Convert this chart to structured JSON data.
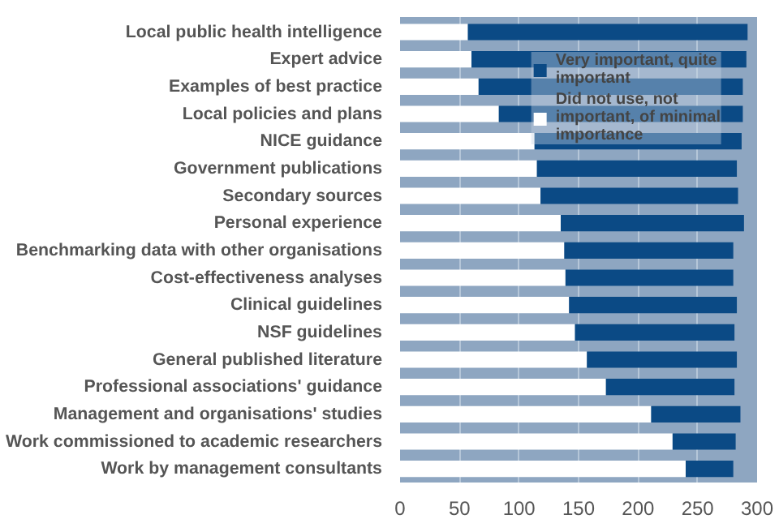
{
  "chart_data": {
    "type": "bar",
    "orientation": "horizontal",
    "stacked": true,
    "categories": [
      "Local public health intelligence",
      "Expert advice",
      "Examples of best practice",
      "Local policies and plans",
      "NICE guidance",
      "Government publications",
      "Secondary sources",
      "Personal experience",
      "Benchmarking data with other organisations",
      "Cost-effectiveness analyses",
      "Clinical guidelines",
      "NSF guidelines",
      "General published literature",
      "Professional associations' guidance",
      "Management and organisations' studies",
      "Work commissioned to academic researchers",
      "Work by management consultants"
    ],
    "series": [
      {
        "name": "Did not use, not important, of minimal importance",
        "color": "#ffffff",
        "values": [
          57,
          60,
          66,
          83,
          113,
          115,
          118,
          135,
          138,
          139,
          142,
          147,
          157,
          173,
          211,
          229,
          240
        ]
      },
      {
        "name": "Very important, quite important",
        "color": "#0b4a85",
        "values": [
          235,
          231,
          222,
          205,
          174,
          168,
          166,
          154,
          142,
          141,
          141,
          134,
          126,
          108,
          75,
          53,
          40
        ]
      }
    ],
    "xlim": [
      0,
      300
    ],
    "xticks": [
      0,
      50,
      100,
      150,
      200,
      250,
      300
    ],
    "grid": "x",
    "legend": "top right"
  }
}
